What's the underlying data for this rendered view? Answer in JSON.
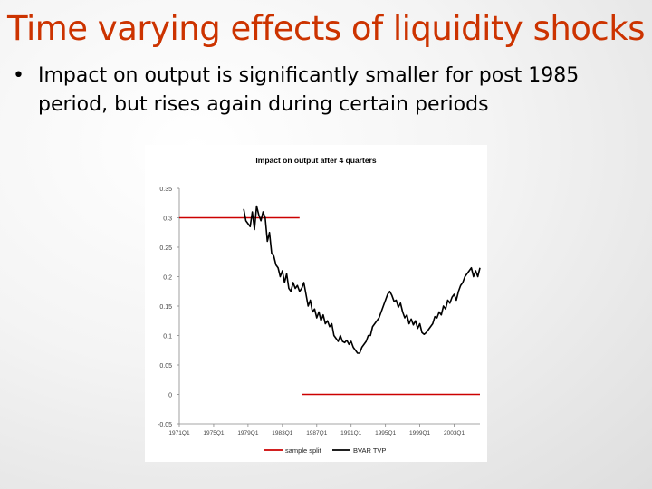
{
  "slide": {
    "title": "Time varying effects of liquidity shocks",
    "bullet": "Impact on output is significantly smaller for post 1985 period, but rises again during certain periods",
    "bullet_symbol": "•",
    "title_color": "#cc3300"
  },
  "chart_data": {
    "type": "line",
    "title": "Impact on output after 4 quarters",
    "ylim": [
      -0.05,
      0.35
    ],
    "yticks": [
      -0.05,
      0,
      0.05,
      0.1,
      0.15,
      0.2,
      0.25,
      0.3,
      0.35
    ],
    "ytick_labels": [
      "-0.05",
      "0",
      "0.05",
      "0.1",
      "0.15",
      "0.2",
      "0.25",
      "0.3",
      "0.35"
    ],
    "xlim": [
      1971,
      2006
    ],
    "xtick_labels": [
      "1971Q1",
      "1975Q1",
      "1979Q1",
      "1983Q1",
      "1987Q1",
      "1991Q1",
      "1995Q1",
      "1999Q1",
      "2003Q1"
    ],
    "xtick_years": [
      1971,
      1975,
      1979,
      1983,
      1987,
      1991,
      1995,
      1999,
      2003
    ],
    "series": [
      {
        "name": "sample split",
        "color": "#cc0000",
        "segments": [
          [
            [
              1971,
              0.3
            ],
            [
              1985,
              0.3
            ]
          ],
          [
            [
              1985.25,
              0.0
            ],
            [
              2006,
              0.0
            ]
          ]
        ]
      },
      {
        "name": "BVAR TVP",
        "color": "#000000",
        "x": [
          1978.5,
          1978.75,
          1979,
          1979.25,
          1979.5,
          1979.75,
          1980,
          1980.25,
          1980.5,
          1980.75,
          1981,
          1981.25,
          1981.5,
          1981.75,
          1982,
          1982.25,
          1982.5,
          1982.75,
          1983,
          1983.25,
          1983.5,
          1983.75,
          1984,
          1984.25,
          1984.5,
          1984.75,
          1985,
          1985.25,
          1985.5,
          1985.75,
          1986,
          1986.25,
          1986.5,
          1986.75,
          1987,
          1987.25,
          1987.5,
          1987.75,
          1988,
          1988.25,
          1988.5,
          1988.75,
          1989,
          1989.25,
          1989.5,
          1989.75,
          1990,
          1990.25,
          1990.5,
          1990.75,
          1991,
          1991.25,
          1991.5,
          1991.75,
          1992,
          1992.25,
          1992.5,
          1992.75,
          1993,
          1993.25,
          1993.5,
          1993.75,
          1994,
          1994.25,
          1994.5,
          1994.75,
          1995,
          1995.25,
          1995.5,
          1995.75,
          1996,
          1996.25,
          1996.5,
          1996.75,
          1997,
          1997.25,
          1997.5,
          1997.75,
          1998,
          1998.25,
          1998.5,
          1998.75,
          1999,
          1999.25,
          1999.5,
          1999.75,
          2000,
          2000.25,
          2000.5,
          2000.75,
          2001,
          2001.25,
          2001.5,
          2001.75,
          2002,
          2002.25,
          2002.5,
          2002.75,
          2003,
          2003.25,
          2003.5,
          2003.75,
          2004,
          2004.25,
          2004.5,
          2004.75,
          2005,
          2005.25,
          2005.5,
          2005.75,
          2006
        ],
        "values": [
          0.315,
          0.295,
          0.29,
          0.285,
          0.31,
          0.28,
          0.32,
          0.305,
          0.295,
          0.31,
          0.3,
          0.26,
          0.275,
          0.24,
          0.235,
          0.22,
          0.215,
          0.2,
          0.21,
          0.19,
          0.205,
          0.18,
          0.175,
          0.19,
          0.18,
          0.185,
          0.175,
          0.18,
          0.19,
          0.17,
          0.15,
          0.16,
          0.14,
          0.145,
          0.13,
          0.14,
          0.125,
          0.135,
          0.12,
          0.125,
          0.115,
          0.12,
          0.1,
          0.095,
          0.09,
          0.1,
          0.09,
          0.088,
          0.092,
          0.085,
          0.09,
          0.08,
          0.075,
          0.07,
          0.07,
          0.08,
          0.085,
          0.09,
          0.1,
          0.1,
          0.115,
          0.12,
          0.125,
          0.13,
          0.14,
          0.15,
          0.16,
          0.17,
          0.175,
          0.168,
          0.158,
          0.16,
          0.148,
          0.155,
          0.14,
          0.13,
          0.135,
          0.12,
          0.128,
          0.118,
          0.125,
          0.112,
          0.12,
          0.105,
          0.102,
          0.105,
          0.11,
          0.115,
          0.12,
          0.132,
          0.13,
          0.14,
          0.135,
          0.15,
          0.145,
          0.16,
          0.155,
          0.165,
          0.17,
          0.16,
          0.175,
          0.185,
          0.19,
          0.2,
          0.205,
          0.21,
          0.215,
          0.2,
          0.21,
          0.2,
          0.215
        ]
      }
    ],
    "legend": [
      "sample split",
      "BVAR TVP"
    ],
    "legend_position": "bottom",
    "grid": false
  }
}
